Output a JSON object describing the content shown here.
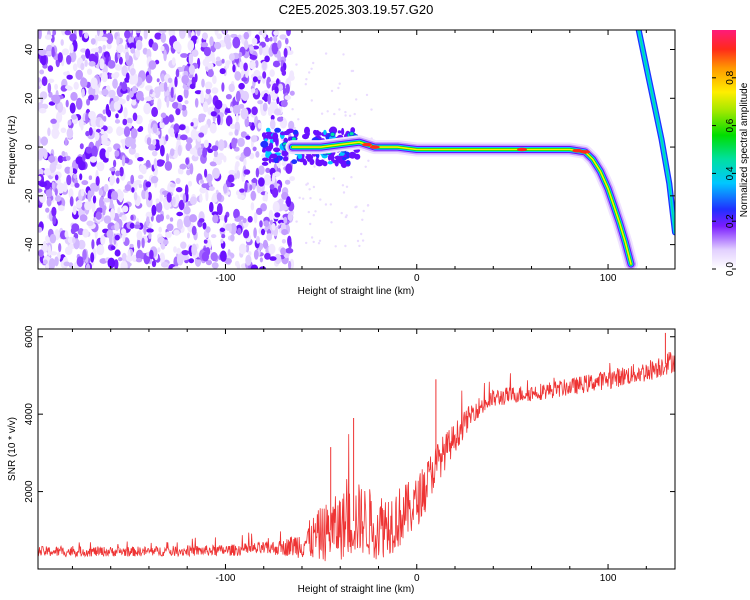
{
  "title": "C2E5.2025.303.19.57.G20",
  "chart_data": [
    {
      "type": "heatmap",
      "xlabel": "Height of straight line (km)",
      "ylabel": "Frequency (Hz)",
      "xlim": [
        -198,
        135
      ],
      "ylim": [
        -50,
        48
      ],
      "xticks": [
        -100,
        0,
        100
      ],
      "xtick_labels": [
        "-100",
        "0",
        "100"
      ],
      "yticks": [
        -40,
        -20,
        0,
        20,
        40
      ],
      "ytick_labels": [
        "-40",
        "-20",
        "0",
        "20",
        "40"
      ],
      "colorbar": {
        "label": "Normalized spectral amplitude",
        "range": [
          0,
          1
        ],
        "ticks": [
          0,
          0.2,
          0.4,
          0.6,
          0.8
        ],
        "tick_labels": [
          "0.0",
          "0.2",
          "0.4",
          "0.6",
          "0.8"
        ],
        "colormap": "rainbow-white-to-magenta"
      },
      "ridge": {
        "x": [
          -65,
          -50,
          -40,
          -30,
          -22,
          -10,
          0,
          20,
          50,
          80,
          88,
          92,
          96,
          100,
          103,
          106,
          109,
          112
        ],
        "y": [
          0,
          0,
          1,
          2,
          0,
          0,
          -1,
          -1,
          -1,
          -1,
          -2,
          -5,
          -10,
          -17,
          -24,
          -31,
          -39,
          -48
        ]
      },
      "secondary_line": {
        "x": [
          116,
          120,
          124,
          128,
          132,
          135
        ],
        "y": [
          48,
          33,
          18,
          3,
          -15,
          -35
        ]
      },
      "noise_region_x": [
        -198,
        -65
      ]
    },
    {
      "type": "line",
      "xlabel": "Height of straight line (km)",
      "ylabel": "SNR (10 * v/v)",
      "xlim": [
        -198,
        135
      ],
      "ylim": [
        0,
        6200
      ],
      "xticks": [
        -100,
        0,
        100
      ],
      "xtick_labels": [
        "-100",
        "0",
        "100"
      ],
      "yticks": [
        2000,
        4000,
        6000
      ],
      "ytick_labels": [
        "2000",
        "4000",
        "6000"
      ],
      "color": "#ee3333",
      "envelope": {
        "x": [
          -198,
          -150,
          -100,
          -70,
          -60,
          -50,
          -40,
          -30,
          -20,
          -10,
          0,
          10,
          20,
          30,
          40,
          50,
          60,
          80,
          100,
          120,
          135
        ],
        "y": [
          450,
          450,
          480,
          550,
          650,
          900,
          1100,
          1300,
          1100,
          1300,
          1700,
          2700,
          3400,
          4100,
          4400,
          4500,
          4550,
          4700,
          4900,
          5100,
          5400
        ],
        "spread": [
          250,
          230,
          260,
          350,
          700,
          1300,
          1600,
          1700,
          1600,
          1500,
          1200,
          1000,
          700,
          500,
          450,
          400,
          400,
          400,
          450,
          500,
          550
        ]
      },
      "spikes": [
        {
          "x": -33,
          "y": 3900
        },
        {
          "x": -45,
          "y": 3150
        },
        {
          "x": 10,
          "y": 4900
        },
        {
          "x": 130,
          "y": 6100
        }
      ]
    }
  ]
}
